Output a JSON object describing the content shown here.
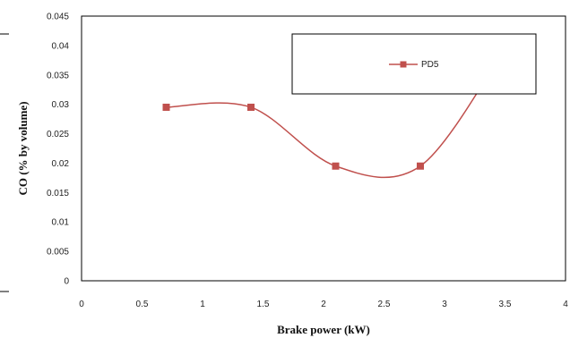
{
  "chart_data": {
    "type": "line",
    "title": "",
    "xlabel": "Brake power (kW)",
    "ylabel": "CO (% by volume)",
    "xlim": [
      0,
      4
    ],
    "ylim": [
      0,
      0.045
    ],
    "x_ticks": [
      "0",
      "0.5",
      "1",
      "1.5",
      "2",
      "2.5",
      "3",
      "3.5",
      "4"
    ],
    "y_ticks": [
      "0",
      "0.005",
      "0.01",
      "0.015",
      "0.02",
      "0.025",
      "0.03",
      "0.035",
      "0.04",
      "0.045"
    ],
    "grid": false,
    "legend": "top-right",
    "smooth": true,
    "series": [
      {
        "name": "PD5",
        "color": "#c0504d",
        "marker": "square",
        "x": [
          0.7,
          1.4,
          2.1,
          2.8,
          3.5
        ],
        "y": [
          0.0295,
          0.0295,
          0.0195,
          0.0195,
          0.0395
        ]
      }
    ]
  }
}
